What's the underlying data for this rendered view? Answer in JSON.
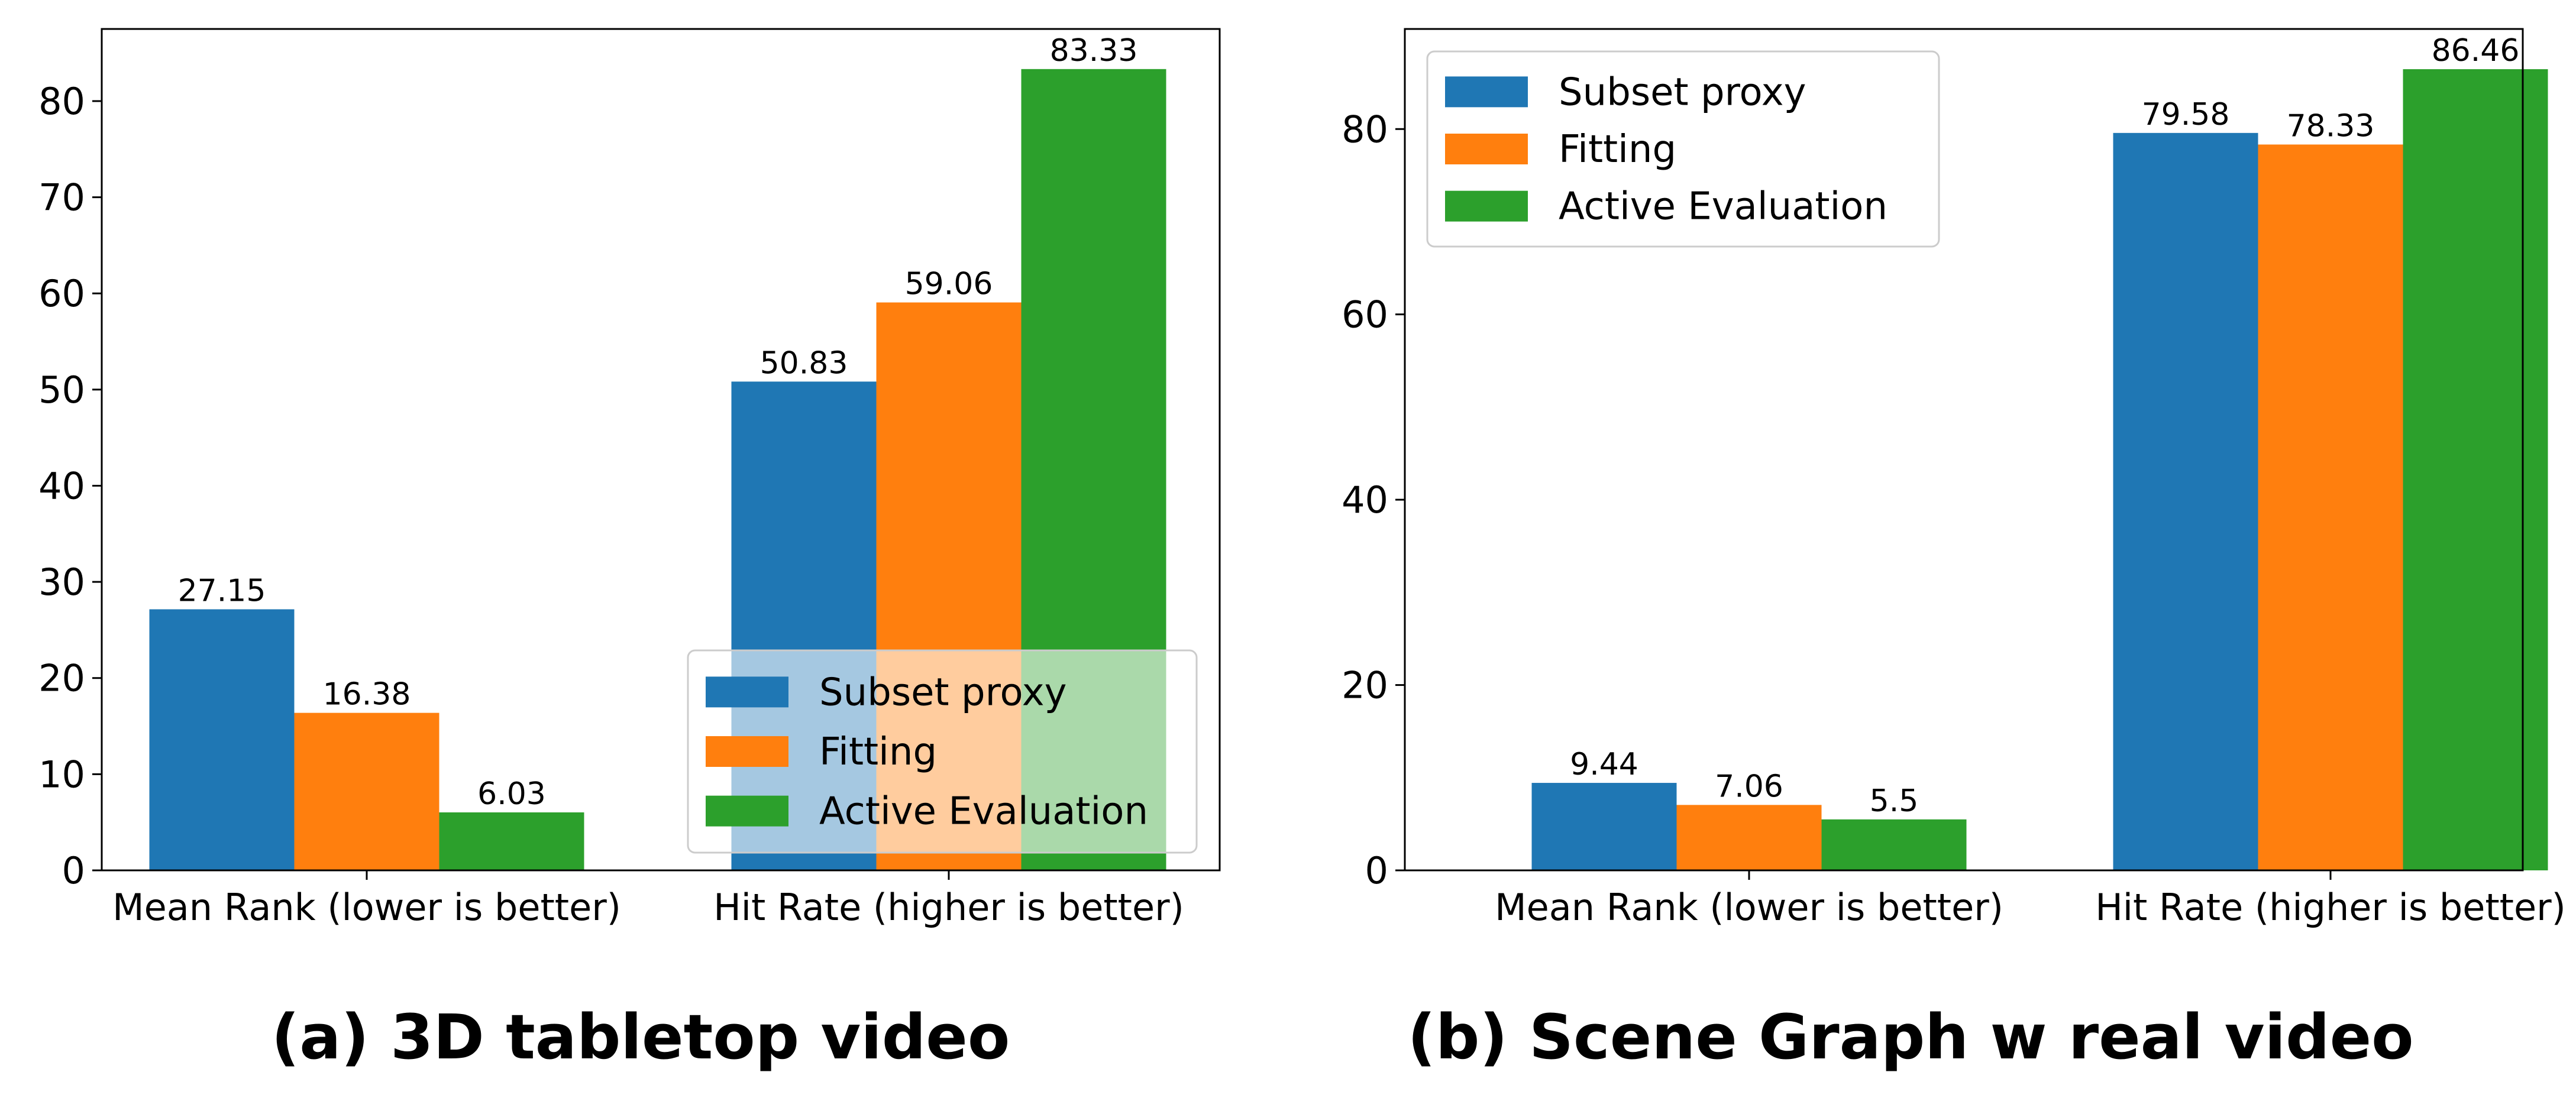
{
  "colors": {
    "series": [
      "#1f77b4",
      "#ff7f0e",
      "#2ca02c"
    ],
    "axis": "#000000",
    "legend_border": "#cccccc",
    "background": "#ffffff"
  },
  "chart_data": [
    {
      "type": "bar",
      "caption": "(a) 3D tabletop video",
      "categories": [
        "Mean Rank (lower is better)",
        "Hit Rate (higher is better)"
      ],
      "series": [
        {
          "name": "Subset proxy",
          "values": [
            27.15,
            50.83
          ]
        },
        {
          "name": "Fitting",
          "values": [
            16.38,
            59.06
          ]
        },
        {
          "name": "Active Evaluation",
          "values": [
            6.03,
            83.33
          ]
        }
      ],
      "value_labels": [
        [
          "27.15",
          "50.83"
        ],
        [
          "16.38",
          "59.06"
        ],
        [
          "6.03",
          "83.33"
        ]
      ],
      "ylim": [
        0,
        87.5
      ],
      "yticks": [
        0,
        10,
        20,
        30,
        40,
        50,
        60,
        70,
        80
      ],
      "ytick_labels": [
        "0",
        "10",
        "20",
        "30",
        "40",
        "50",
        "60",
        "70",
        "80"
      ],
      "legend_position": "lower right",
      "legend_semi_transparent": true,
      "grid": false
    },
    {
      "type": "bar",
      "caption": "(b) Scene Graph w real video",
      "categories": [
        "Mean Rank (lower is better)",
        "Hit Rate (higher is better)"
      ],
      "series": [
        {
          "name": "Subset proxy",
          "values": [
            9.44,
            79.58
          ]
        },
        {
          "name": "Fitting",
          "values": [
            7.06,
            78.33
          ]
        },
        {
          "name": "Active Evaluation",
          "values": [
            5.5,
            86.46
          ]
        }
      ],
      "value_labels": [
        [
          "9.44",
          "79.58"
        ],
        [
          "7.06",
          "78.33"
        ],
        [
          "5.5",
          "86.46"
        ]
      ],
      "ylim": [
        0,
        90.8
      ],
      "yticks": [
        0,
        20,
        40,
        60,
        80
      ],
      "ytick_labels": [
        "0",
        "20",
        "40",
        "60",
        "80"
      ],
      "legend_position": "upper left",
      "legend_semi_transparent": false,
      "grid": false
    }
  ]
}
